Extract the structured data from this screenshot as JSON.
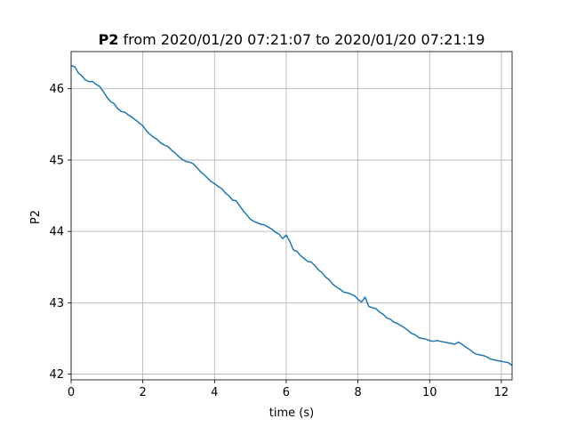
{
  "chart_data": {
    "type": "line",
    "title": "P2 from 2020/01/20 07:21:07 to 2020/01/20 07:21:19",
    "title_parts": {
      "bold": "P2",
      "rest": " from 2020/01/20 07:21:07 to 2020/01/20 07:21:19"
    },
    "xlabel": "time (s)",
    "ylabel": "P2",
    "xlim": [
      0,
      12.3
    ],
    "ylim": [
      41.92,
      46.52
    ],
    "xticks": [
      0,
      2,
      4,
      6,
      8,
      10,
      12
    ],
    "yticks": [
      42,
      43,
      44,
      45,
      46
    ],
    "grid": true,
    "colors": {
      "series": "#1f77b4",
      "grid": "#b0b0b0"
    },
    "series": [
      {
        "x": [
          0.0,
          0.1,
          0.2,
          0.3,
          0.4,
          0.5,
          0.6,
          0.7,
          0.8,
          0.9,
          1.0,
          1.1,
          1.2,
          1.3,
          1.4,
          1.5,
          1.6,
          1.7,
          1.8,
          1.9,
          2.0,
          2.1,
          2.2,
          2.3,
          2.4,
          2.5,
          2.6,
          2.7,
          2.8,
          2.9,
          3.0,
          3.1,
          3.2,
          3.3,
          3.4,
          3.5,
          3.6,
          3.7,
          3.8,
          3.9,
          4.0,
          4.1,
          4.2,
          4.3,
          4.4,
          4.5,
          4.6,
          4.7,
          4.8,
          4.9,
          5.0,
          5.1,
          5.2,
          5.3,
          5.4,
          5.5,
          5.6,
          5.7,
          5.8,
          5.9,
          6.0,
          6.1,
          6.2,
          6.3,
          6.4,
          6.5,
          6.6,
          6.7,
          6.8,
          6.9,
          7.0,
          7.1,
          7.2,
          7.3,
          7.4,
          7.5,
          7.6,
          7.7,
          7.8,
          7.9,
          8.0,
          8.1,
          8.2,
          8.3,
          8.4,
          8.5,
          8.6,
          8.7,
          8.8,
          8.9,
          9.0,
          9.1,
          9.2,
          9.3,
          9.4,
          9.5,
          9.6,
          9.7,
          9.8,
          9.9,
          10.0,
          10.1,
          10.2,
          10.3,
          10.4,
          10.5,
          10.6,
          10.7,
          10.8,
          10.9,
          11.0,
          11.1,
          11.2,
          11.3,
          11.4,
          11.5,
          11.6,
          11.7,
          11.8,
          11.9,
          12.0,
          12.1,
          12.2,
          12.3
        ],
        "values": [
          46.32,
          46.31,
          46.22,
          46.18,
          46.12,
          46.1,
          46.1,
          46.06,
          46.03,
          45.96,
          45.88,
          45.82,
          45.79,
          45.72,
          45.68,
          45.67,
          45.63,
          45.6,
          45.56,
          45.52,
          45.48,
          45.41,
          45.36,
          45.32,
          45.29,
          45.24,
          45.21,
          45.19,
          45.14,
          45.1,
          45.05,
          45.01,
          44.98,
          44.97,
          44.95,
          44.9,
          44.84,
          44.8,
          44.75,
          44.7,
          44.67,
          44.63,
          44.6,
          44.54,
          44.5,
          44.44,
          44.43,
          44.36,
          44.29,
          44.23,
          44.17,
          44.14,
          44.12,
          44.1,
          44.09,
          44.06,
          44.03,
          43.99,
          43.96,
          43.9,
          43.95,
          43.86,
          43.74,
          43.72,
          43.66,
          43.62,
          43.58,
          43.57,
          43.52,
          43.46,
          43.42,
          43.36,
          43.32,
          43.26,
          43.22,
          43.19,
          43.15,
          43.14,
          43.12,
          43.1,
          43.05,
          43.01,
          43.08,
          42.95,
          42.93,
          42.92,
          42.87,
          42.84,
          42.79,
          42.77,
          42.73,
          42.71,
          42.68,
          42.65,
          42.61,
          42.57,
          42.55,
          42.51,
          42.5,
          42.49,
          42.47,
          42.46,
          42.47,
          42.46,
          42.45,
          42.44,
          42.43,
          42.42,
          42.45,
          42.42,
          42.38,
          42.35,
          42.31,
          42.28,
          42.27,
          42.26,
          42.24,
          42.21,
          42.2,
          42.19,
          42.18,
          42.17,
          42.16,
          42.12
        ]
      }
    ]
  }
}
